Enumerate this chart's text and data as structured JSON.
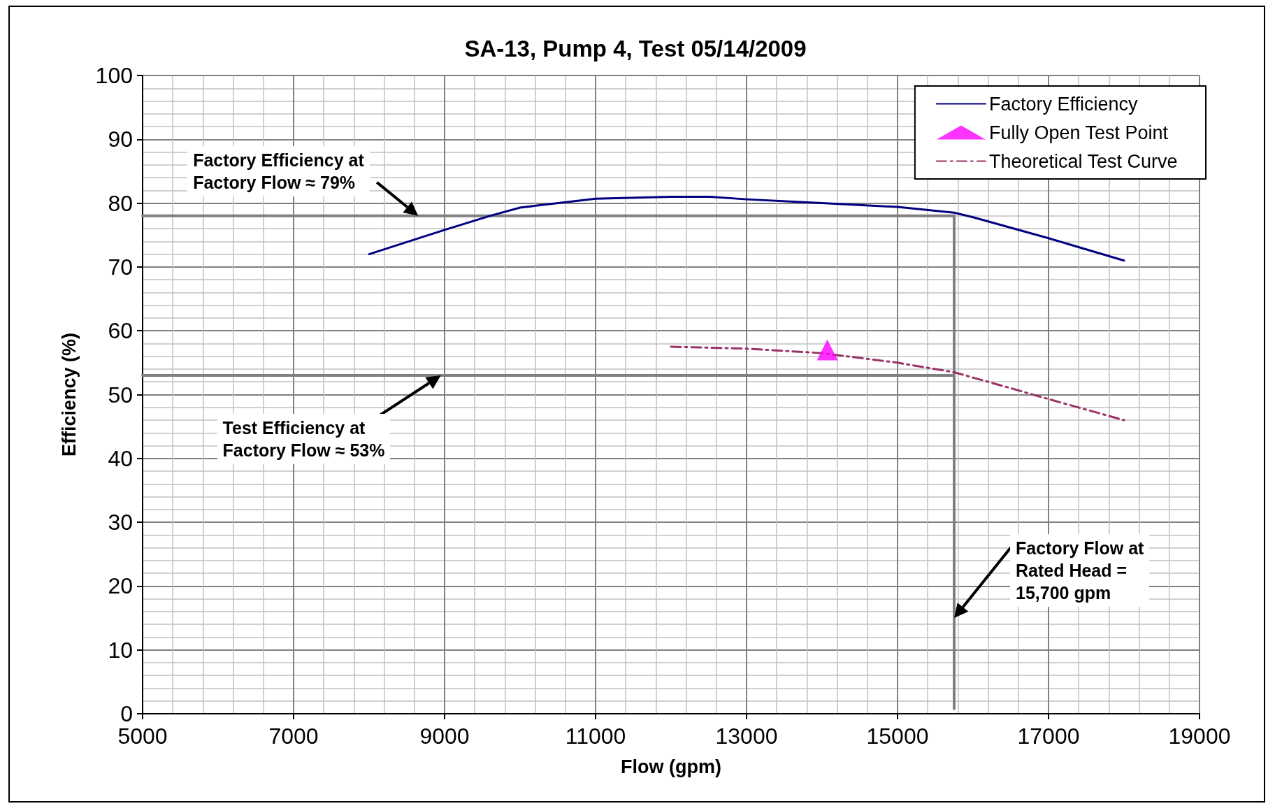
{
  "chart_data": {
    "type": "line",
    "title": "SA-13, Pump 4, Test 05/14/2009",
    "xlabel": "Flow (gpm)",
    "ylabel": "Efficiency (%)",
    "xlim": [
      5000,
      19000
    ],
    "xticks": [
      5000,
      7000,
      9000,
      11000,
      13000,
      15000,
      17000,
      19000
    ],
    "ylim": [
      0,
      100
    ],
    "yticks": [
      0,
      10,
      20,
      30,
      40,
      50,
      60,
      70,
      80,
      90,
      100
    ],
    "grid": true,
    "legend": "top right",
    "series": [
      {
        "name": "Factory Efficiency",
        "color": "#000080",
        "marker": "none",
        "line_style": "solid",
        "x": [
          8000,
          9000,
          9600,
          10000,
          11000,
          12000,
          12500,
          13000,
          14000,
          15000,
          15750,
          16000,
          17000,
          18000
        ],
        "values": [
          72,
          75.8,
          78,
          79.3,
          80.7,
          81,
          81,
          80.6,
          80,
          79.4,
          78.5,
          77.8,
          74.5,
          71
        ]
      },
      {
        "name": "Fully Open Test Point",
        "type": "scatter",
        "color": "#ff00ff",
        "marker": "triangle",
        "x": [
          14070
        ],
        "values": [
          57
        ]
      },
      {
        "name": "Theoretical Test Curve",
        "color": "#993366",
        "marker": "none",
        "line_style": "dashed",
        "x": [
          12000,
          13000,
          14000,
          15000,
          15750,
          16500,
          17000,
          18000
        ],
        "values": [
          57.5,
          57.2,
          56.5,
          55,
          53.5,
          51,
          49.3,
          46
        ]
      },
      {
        "type": "line",
        "color": "#808080",
        "marker": "none",
        "line_style": "solid",
        "x": [
          5000,
          15750
        ],
        "values": [
          78,
          78
        ]
      },
      {
        "type": "line",
        "color": "#808080",
        "marker": "none",
        "line_style": "solid",
        "x": [
          5000,
          15750
        ],
        "values": [
          53,
          53
        ]
      },
      {
        "type": "line",
        "color": "#808080",
        "marker": "none",
        "line_style": "solid",
        "x": [
          15750,
          15750
        ],
        "values": [
          0.8,
          78
        ]
      }
    ],
    "annotations": [
      "Factory Efficiency at\nFactory Flow ≈ 79%",
      "Test Efficiency at\nFactory Flow ≈ 53%",
      "Factory Flow at\nRated Head =\n15,700 gpm"
    ]
  }
}
